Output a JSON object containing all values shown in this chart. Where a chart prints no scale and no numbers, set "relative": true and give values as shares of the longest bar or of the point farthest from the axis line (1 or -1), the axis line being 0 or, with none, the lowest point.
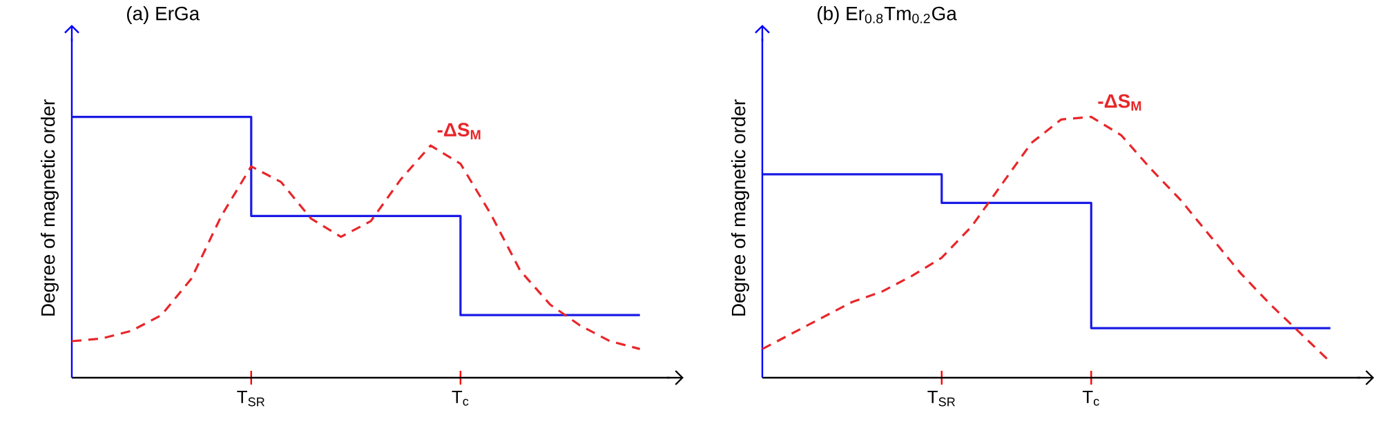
{
  "chart_data": [
    {
      "type": "line",
      "title": "(a)  ErGa",
      "ylabel": "Degree of magnetic order",
      "relative": true,
      "tick_labels": "x",
      "categories": [
        null,
        null,
        null,
        null,
        null,
        null,
        "T$_{SR}$",
        null,
        null,
        null,
        null,
        null,
        null,
        "T$_{c}$",
        null,
        null,
        null,
        null,
        null,
        null,
        null
      ],
      "series": [
        {
          "type": "step",
          "color": "#1a1ae6",
          "line_style": "solid",
          "values": [
            1.0,
            1.0,
            1.0,
            1.0,
            1.0,
            1.0,
            0.62,
            0.62,
            0.62,
            0.62,
            0.62,
            0.62,
            0.62,
            0.24,
            0.24,
            0.24,
            0.24,
            0.24,
            0.24,
            0.24,
            null
          ]
        },
        {
          "name": "**-ΔS$_{M}$**",
          "color": "#e8262a",
          "line_style": "dashed",
          "values": [
            0.14,
            0.15,
            0.18,
            0.24,
            0.38,
            0.62,
            0.81,
            0.75,
            0.61,
            0.54,
            0.6,
            0.76,
            0.89,
            0.82,
            0.63,
            0.41,
            0.28,
            0.2,
            0.14,
            0.11,
            null
          ]
        }
      ]
    },
    {
      "type": "line",
      "title": "(b)  Er$_{0.8}$Tm$_{0.2}$Ga",
      "ylabel": "Degree of magnetic order",
      "relative": true,
      "tick_labels": "x",
      "categories": [
        null,
        null,
        null,
        null,
        null,
        null,
        "T$_{SR}$",
        null,
        null,
        null,
        null,
        "T$_{c}$",
        null,
        null,
        null,
        null,
        null,
        null,
        null,
        null,
        null
      ],
      "series": [
        {
          "type": "step",
          "color": "#1a1ae6",
          "line_style": "solid",
          "values": [
            0.78,
            0.78,
            0.78,
            0.78,
            0.78,
            0.78,
            0.67,
            0.67,
            0.67,
            0.67,
            0.67,
            0.19,
            0.19,
            0.19,
            0.19,
            0.19,
            0.19,
            0.19,
            0.19,
            0.19,
            null
          ]
        },
        {
          "name": "**-ΔS$_{M}$**",
          "color": "#e8262a",
          "line_style": "dashed",
          "values": [
            0.11,
            0.17,
            0.23,
            0.29,
            0.33,
            0.39,
            0.46,
            0.58,
            0.74,
            0.9,
            0.99,
            1.0,
            0.93,
            0.8,
            0.68,
            0.54,
            0.4,
            0.28,
            0.17,
            0.06,
            null
          ]
        }
      ]
    }
  ]
}
